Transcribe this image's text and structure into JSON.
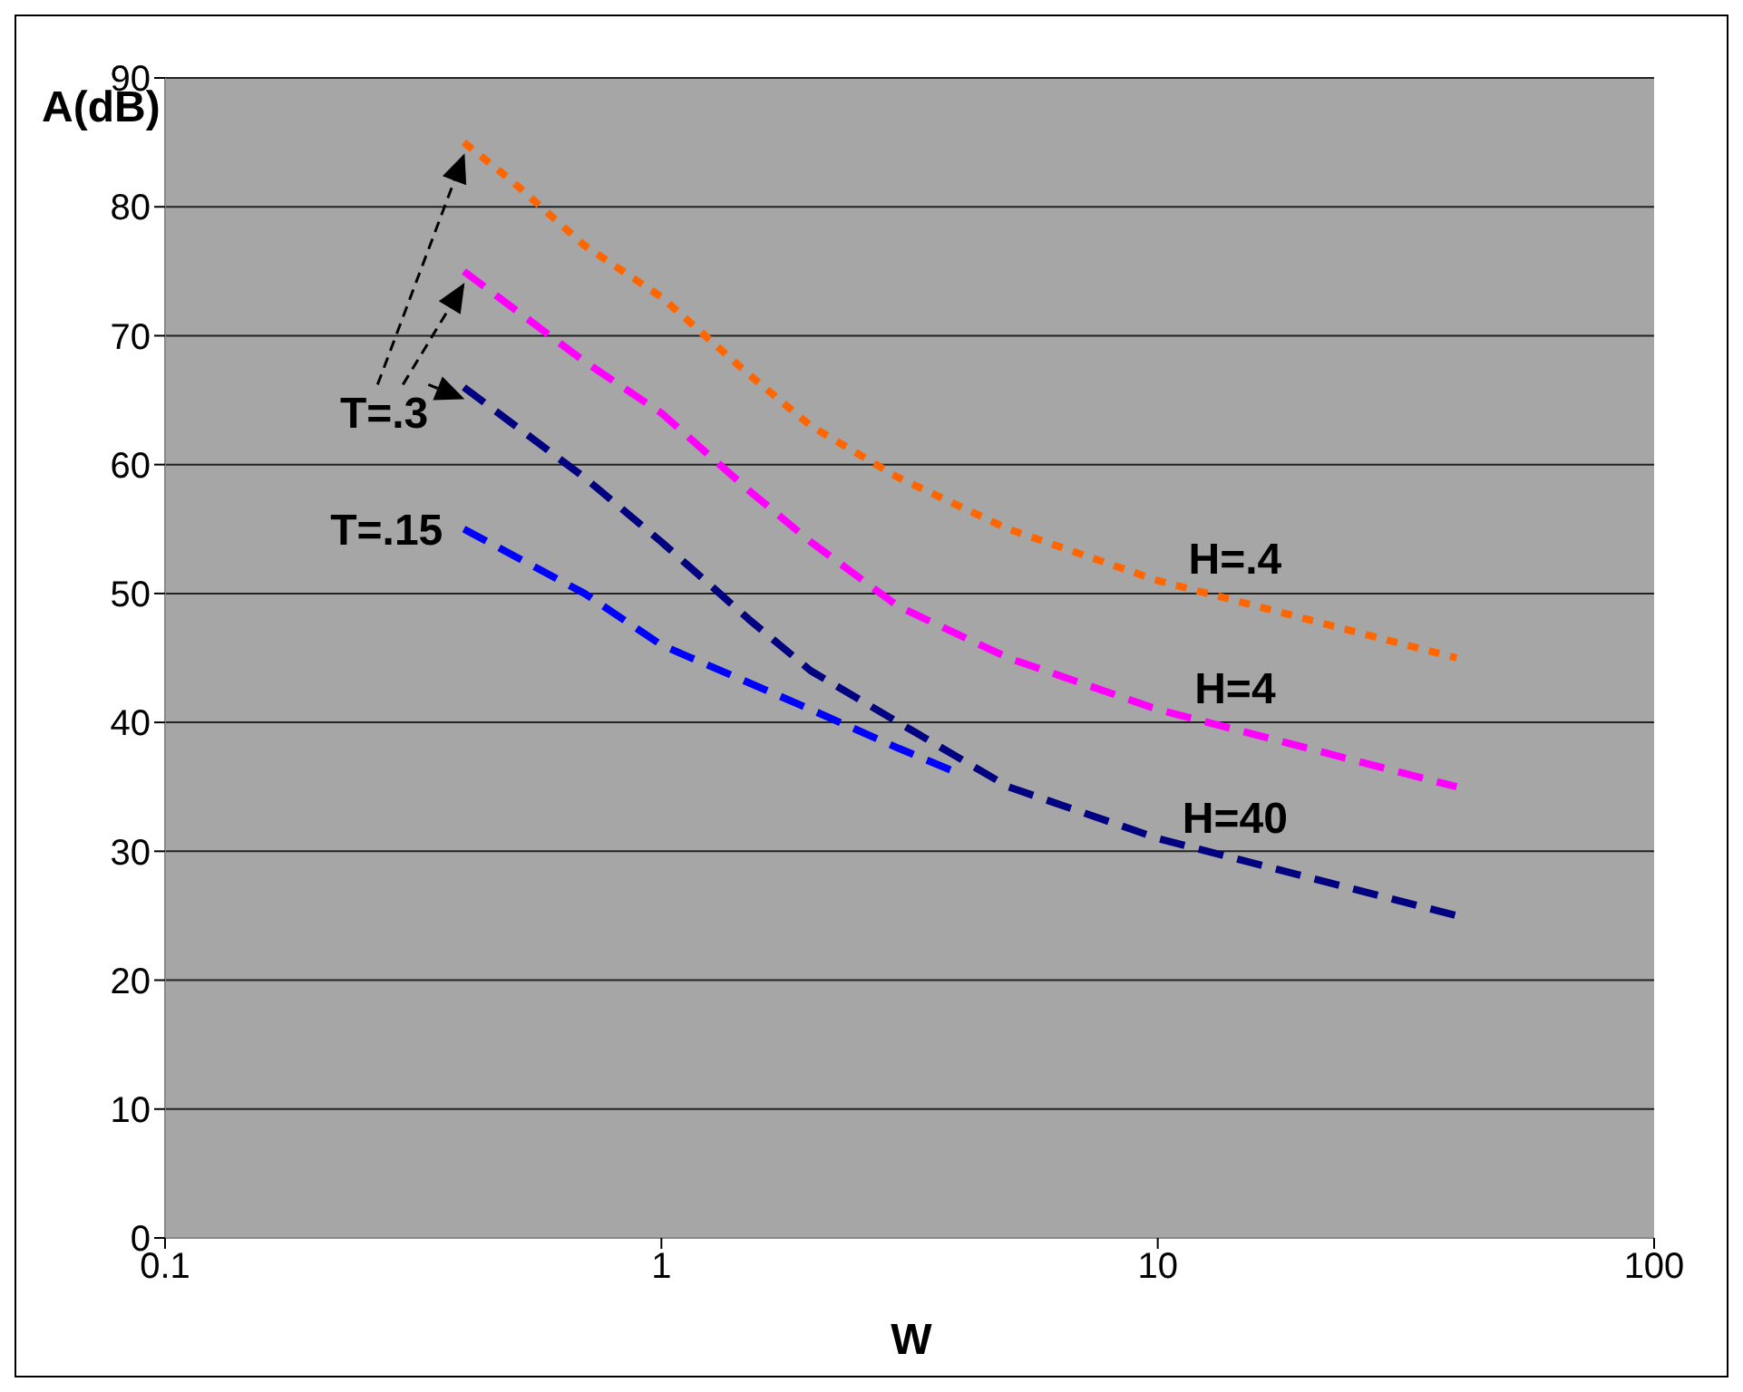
{
  "chart_data": {
    "type": "line",
    "xlabel": "W",
    "ylabel": "A(dB)",
    "log": "x",
    "xlim": [
      0.1,
      100
    ],
    "xticks": [
      0.1,
      1,
      10,
      100
    ],
    "ylim": [
      0,
      90
    ],
    "yticks": [
      0,
      10,
      20,
      30,
      40,
      50,
      60,
      70,
      80,
      90
    ],
    "grid": "y",
    "marker": "none",
    "annotations": [
      "T=.3"
    ],
    "series": [
      {
        "name": "H=.4",
        "color": "#ff6600",
        "line_style": "dotted",
        "x": [
          0.4,
          0.5,
          0.7,
          1,
          1.5,
          2,
          3,
          5,
          10,
          20,
          40
        ],
        "values": [
          85,
          82,
          77,
          73,
          67,
          63,
          59,
          55,
          51,
          48,
          45
        ]
      },
      {
        "name": "H=4",
        "color": "#ff00ff",
        "line_style": "dashed",
        "x": [
          0.4,
          0.7,
          1,
          1.5,
          2,
          3,
          5,
          10,
          20,
          40
        ],
        "values": [
          75,
          68,
          64,
          58,
          54,
          49,
          45,
          41,
          38,
          35
        ]
      },
      {
        "name": "H=40",
        "color": "#000080",
        "line_style": "dashed",
        "x": [
          0.4,
          0.7,
          1,
          1.5,
          2,
          3,
          5,
          10,
          20,
          40
        ],
        "values": [
          66,
          59,
          54,
          48,
          44,
          40,
          35,
          31,
          28,
          25
        ]
      },
      {
        "name": "T=.15",
        "color": "#0000ff",
        "line_style": "dashed",
        "x": [
          0.4,
          0.7,
          1,
          2,
          3,
          4
        ],
        "values": [
          55,
          50,
          46,
          41,
          38,
          36
        ]
      }
    ]
  }
}
